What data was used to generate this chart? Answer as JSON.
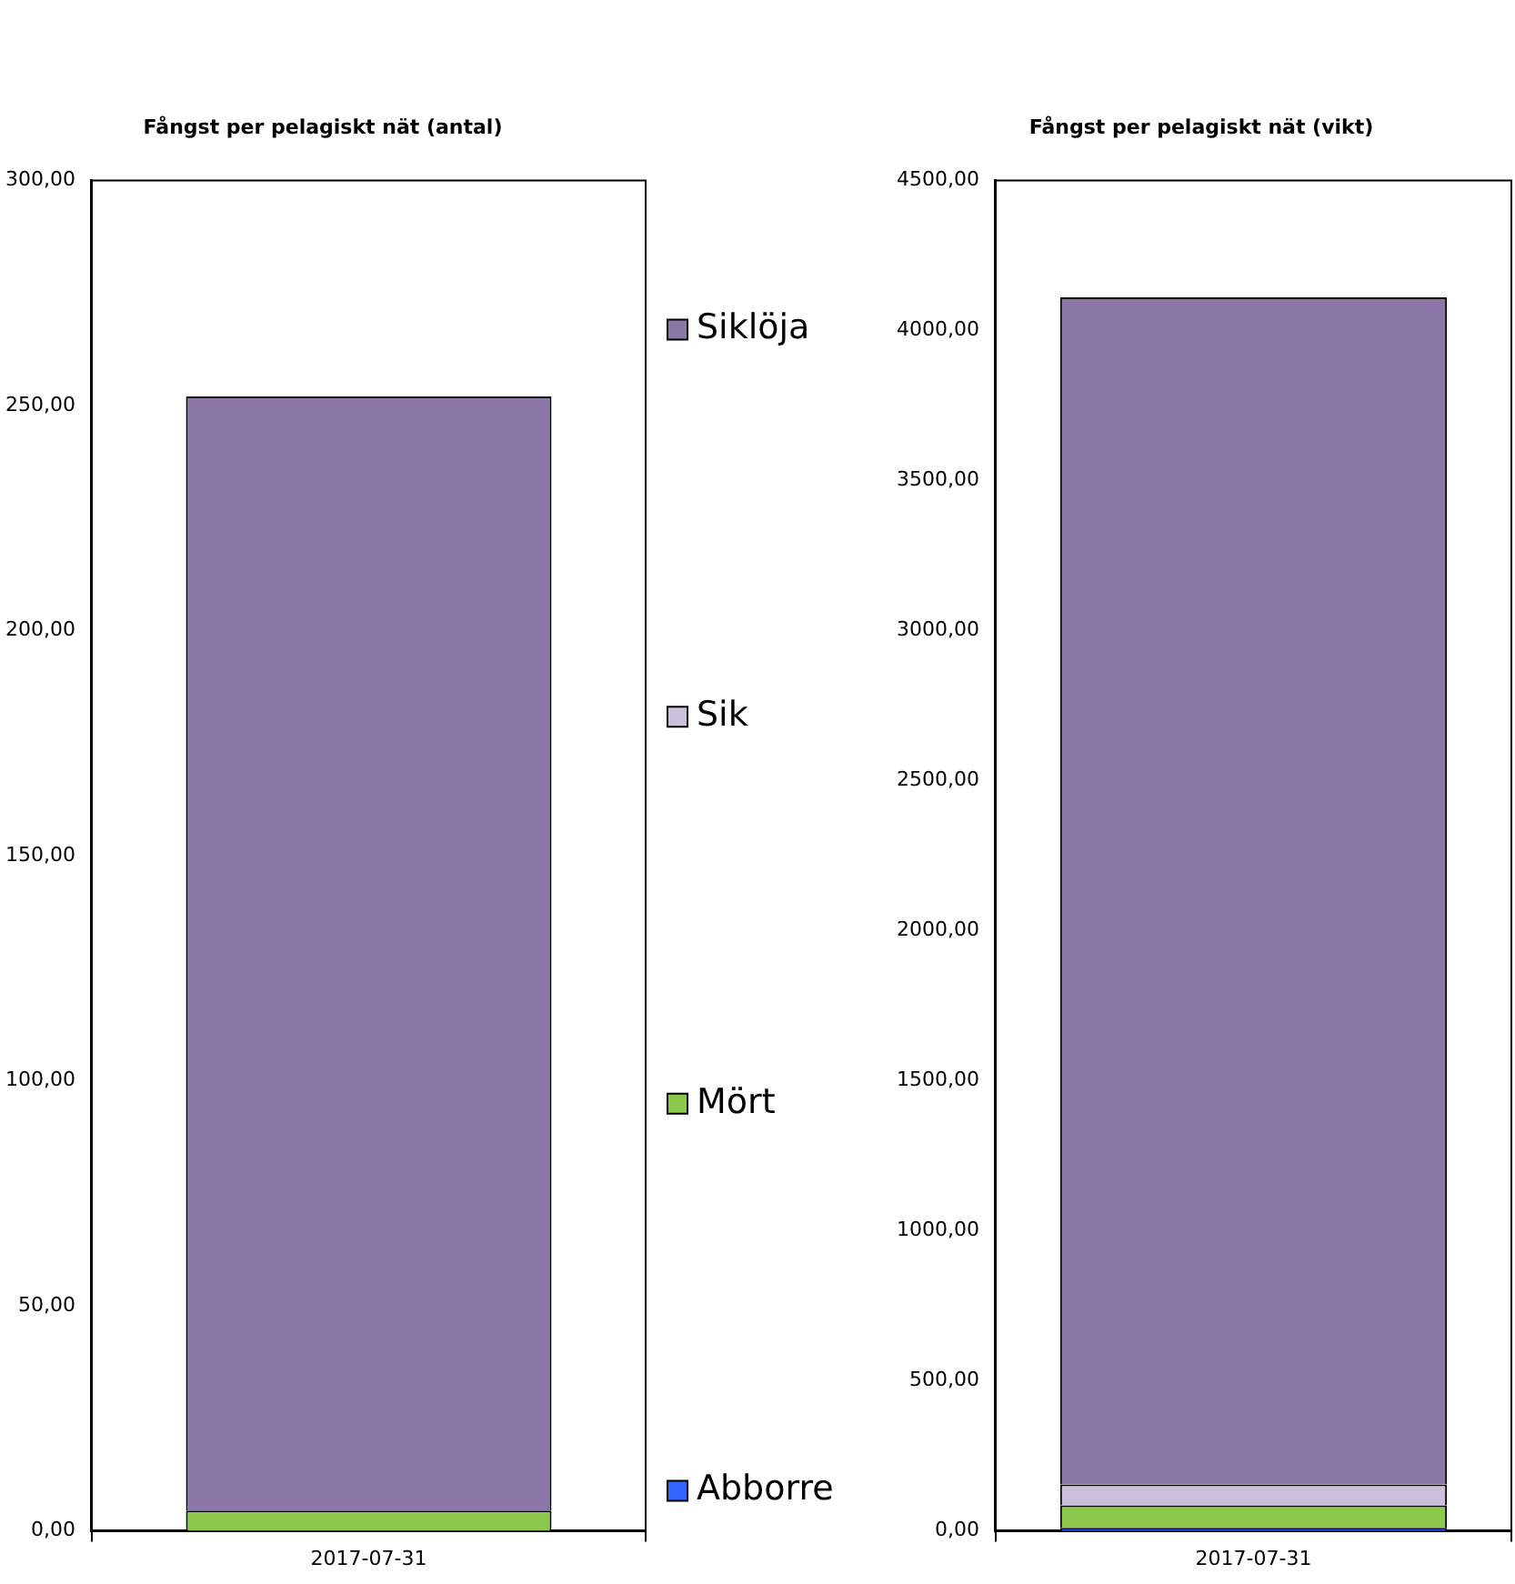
{
  "chart_data": [
    {
      "type": "bar",
      "title": "Fångst per pelagiskt nät (antal)",
      "stacked": true,
      "categories": [
        "2017-07-31"
      ],
      "legend": "right",
      "ylim": [
        0,
        300
      ],
      "yticks": [
        {
          "value": 0,
          "label": "0,00"
        },
        {
          "value": 50,
          "label": "50,00"
        },
        {
          "value": 100,
          "label": "100,00"
        },
        {
          "value": 150,
          "label": "150,00"
        },
        {
          "value": 200,
          "label": "200,00"
        },
        {
          "value": 250,
          "label": "250,00"
        },
        {
          "value": 300,
          "label": "300,00"
        }
      ],
      "series": [
        {
          "name": "Abborre",
          "color": "#3366ff",
          "values": [
            0
          ]
        },
        {
          "name": "Mört",
          "color": "#8cc84b",
          "values": [
            4.5
          ]
        },
        {
          "name": "Sik",
          "color": "#cbbfdd",
          "values": [
            0
          ]
        },
        {
          "name": "Siklöja",
          "color": "#8b77a8",
          "values": [
            247.5
          ]
        }
      ]
    },
    {
      "type": "bar",
      "title": "Fångst per pelagiskt nät (vikt)",
      "stacked": true,
      "categories": [
        "2017-07-31"
      ],
      "ylim": [
        0,
        4500
      ],
      "yticks": [
        {
          "value": 0,
          "label": "0,00"
        },
        {
          "value": 500,
          "label": "500,00"
        },
        {
          "value": 1000,
          "label": "1000,00"
        },
        {
          "value": 1500,
          "label": "1500,00"
        },
        {
          "value": 2000,
          "label": "2000,00"
        },
        {
          "value": 2500,
          "label": "2500,00"
        },
        {
          "value": 3000,
          "label": "3000,00"
        },
        {
          "value": 3500,
          "label": "3500,00"
        },
        {
          "value": 4000,
          "label": "4000,00"
        },
        {
          "value": 4500,
          "label": "4500,00"
        }
      ],
      "series": [
        {
          "color": "#3366ff",
          "values": [
            10
          ]
        },
        {
          "color": "#8cc84b",
          "values": [
            75
          ]
        },
        {
          "color": "#cbbfdd",
          "values": [
            70
          ]
        },
        {
          "color": "#8b77a8",
          "values": [
            3955
          ]
        }
      ]
    }
  ]
}
